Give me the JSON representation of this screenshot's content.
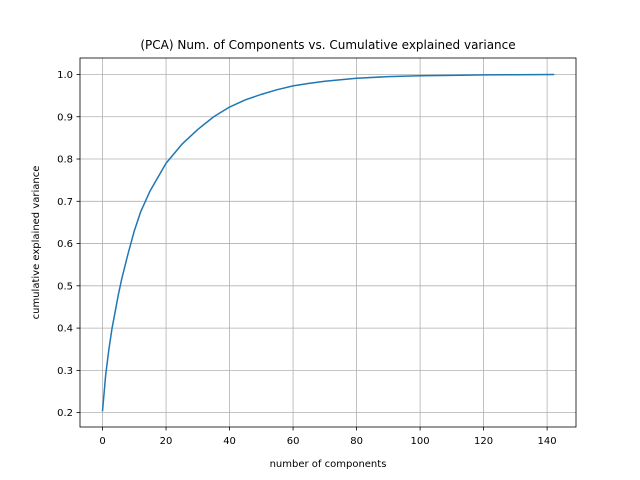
{
  "chart_data": {
    "type": "line",
    "title": "(PCA) Num. of Components vs. Cumulative explained variance",
    "xlabel": "number of components",
    "ylabel": "cumulative explained variance",
    "xlim": [
      -7.1,
      149.1
    ],
    "ylim": [
      0.166,
      1.039
    ],
    "xticks": [
      0,
      20,
      40,
      60,
      80,
      100,
      120,
      140
    ],
    "yticks": [
      0.2,
      0.3,
      0.4,
      0.5,
      0.6,
      0.7,
      0.8,
      0.9,
      1.0
    ],
    "xtick_labels": [
      "0",
      "20",
      "40",
      "60",
      "80",
      "100",
      "120",
      "140"
    ],
    "ytick_labels": [
      "0.2",
      "0.3",
      "0.4",
      "0.5",
      "0.6",
      "0.7",
      "0.8",
      "0.9",
      "1.0"
    ],
    "grid": true,
    "colors": {
      "line": "#1f77b4",
      "grid": "#b0b0b0"
    },
    "series": [
      {
        "x": [
          0,
          1,
          2,
          3,
          4,
          5,
          6,
          8,
          10,
          12,
          15,
          20,
          25,
          30,
          35,
          40,
          45,
          50,
          55,
          60,
          65,
          70,
          80,
          90,
          100,
          110,
          120,
          130,
          142
        ],
        "y": [
          0.205,
          0.29,
          0.35,
          0.4,
          0.44,
          0.48,
          0.515,
          0.575,
          0.63,
          0.675,
          0.725,
          0.79,
          0.835,
          0.87,
          0.9,
          0.923,
          0.94,
          0.953,
          0.964,
          0.973,
          0.979,
          0.984,
          0.991,
          0.995,
          0.997,
          0.998,
          0.999,
          0.9995,
          1.0
        ]
      }
    ]
  }
}
